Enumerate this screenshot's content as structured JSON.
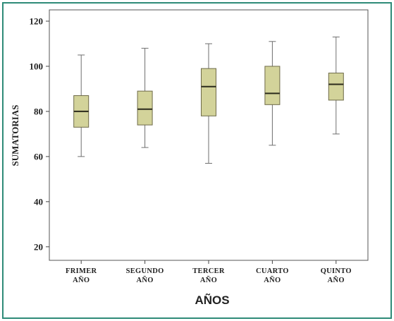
{
  "chart_data": {
    "type": "box",
    "xlabel": "AÑOS",
    "ylabel": "SUMATORIAS",
    "ylim": [
      14,
      125
    ],
    "yticks": [
      20,
      40,
      60,
      80,
      100,
      120
    ],
    "grid": false,
    "box_color": "#d3d39a",
    "box_edge_color": "#6e6a48",
    "whisker_color": "#6e6e6e",
    "categories": [
      [
        "FRIMER",
        "AÑO"
      ],
      [
        "SEGUNDO",
        "AÑO"
      ],
      [
        "TERCER",
        "AÑO"
      ],
      [
        "CUARTO",
        "AÑO"
      ],
      [
        "QUINTO",
        "AÑO"
      ]
    ],
    "boxes": [
      {
        "min": 60,
        "q1": 73,
        "median": 80,
        "q3": 87,
        "max": 105
      },
      {
        "min": 64,
        "q1": 74,
        "median": 81,
        "q3": 89,
        "max": 108
      },
      {
        "min": 57,
        "q1": 78,
        "median": 91,
        "q3": 99,
        "max": 110
      },
      {
        "min": 65,
        "q1": 83,
        "median": 88,
        "q3": 100,
        "max": 111
      },
      {
        "min": 70,
        "q1": 85,
        "median": 92,
        "q3": 97,
        "max": 113
      }
    ]
  }
}
